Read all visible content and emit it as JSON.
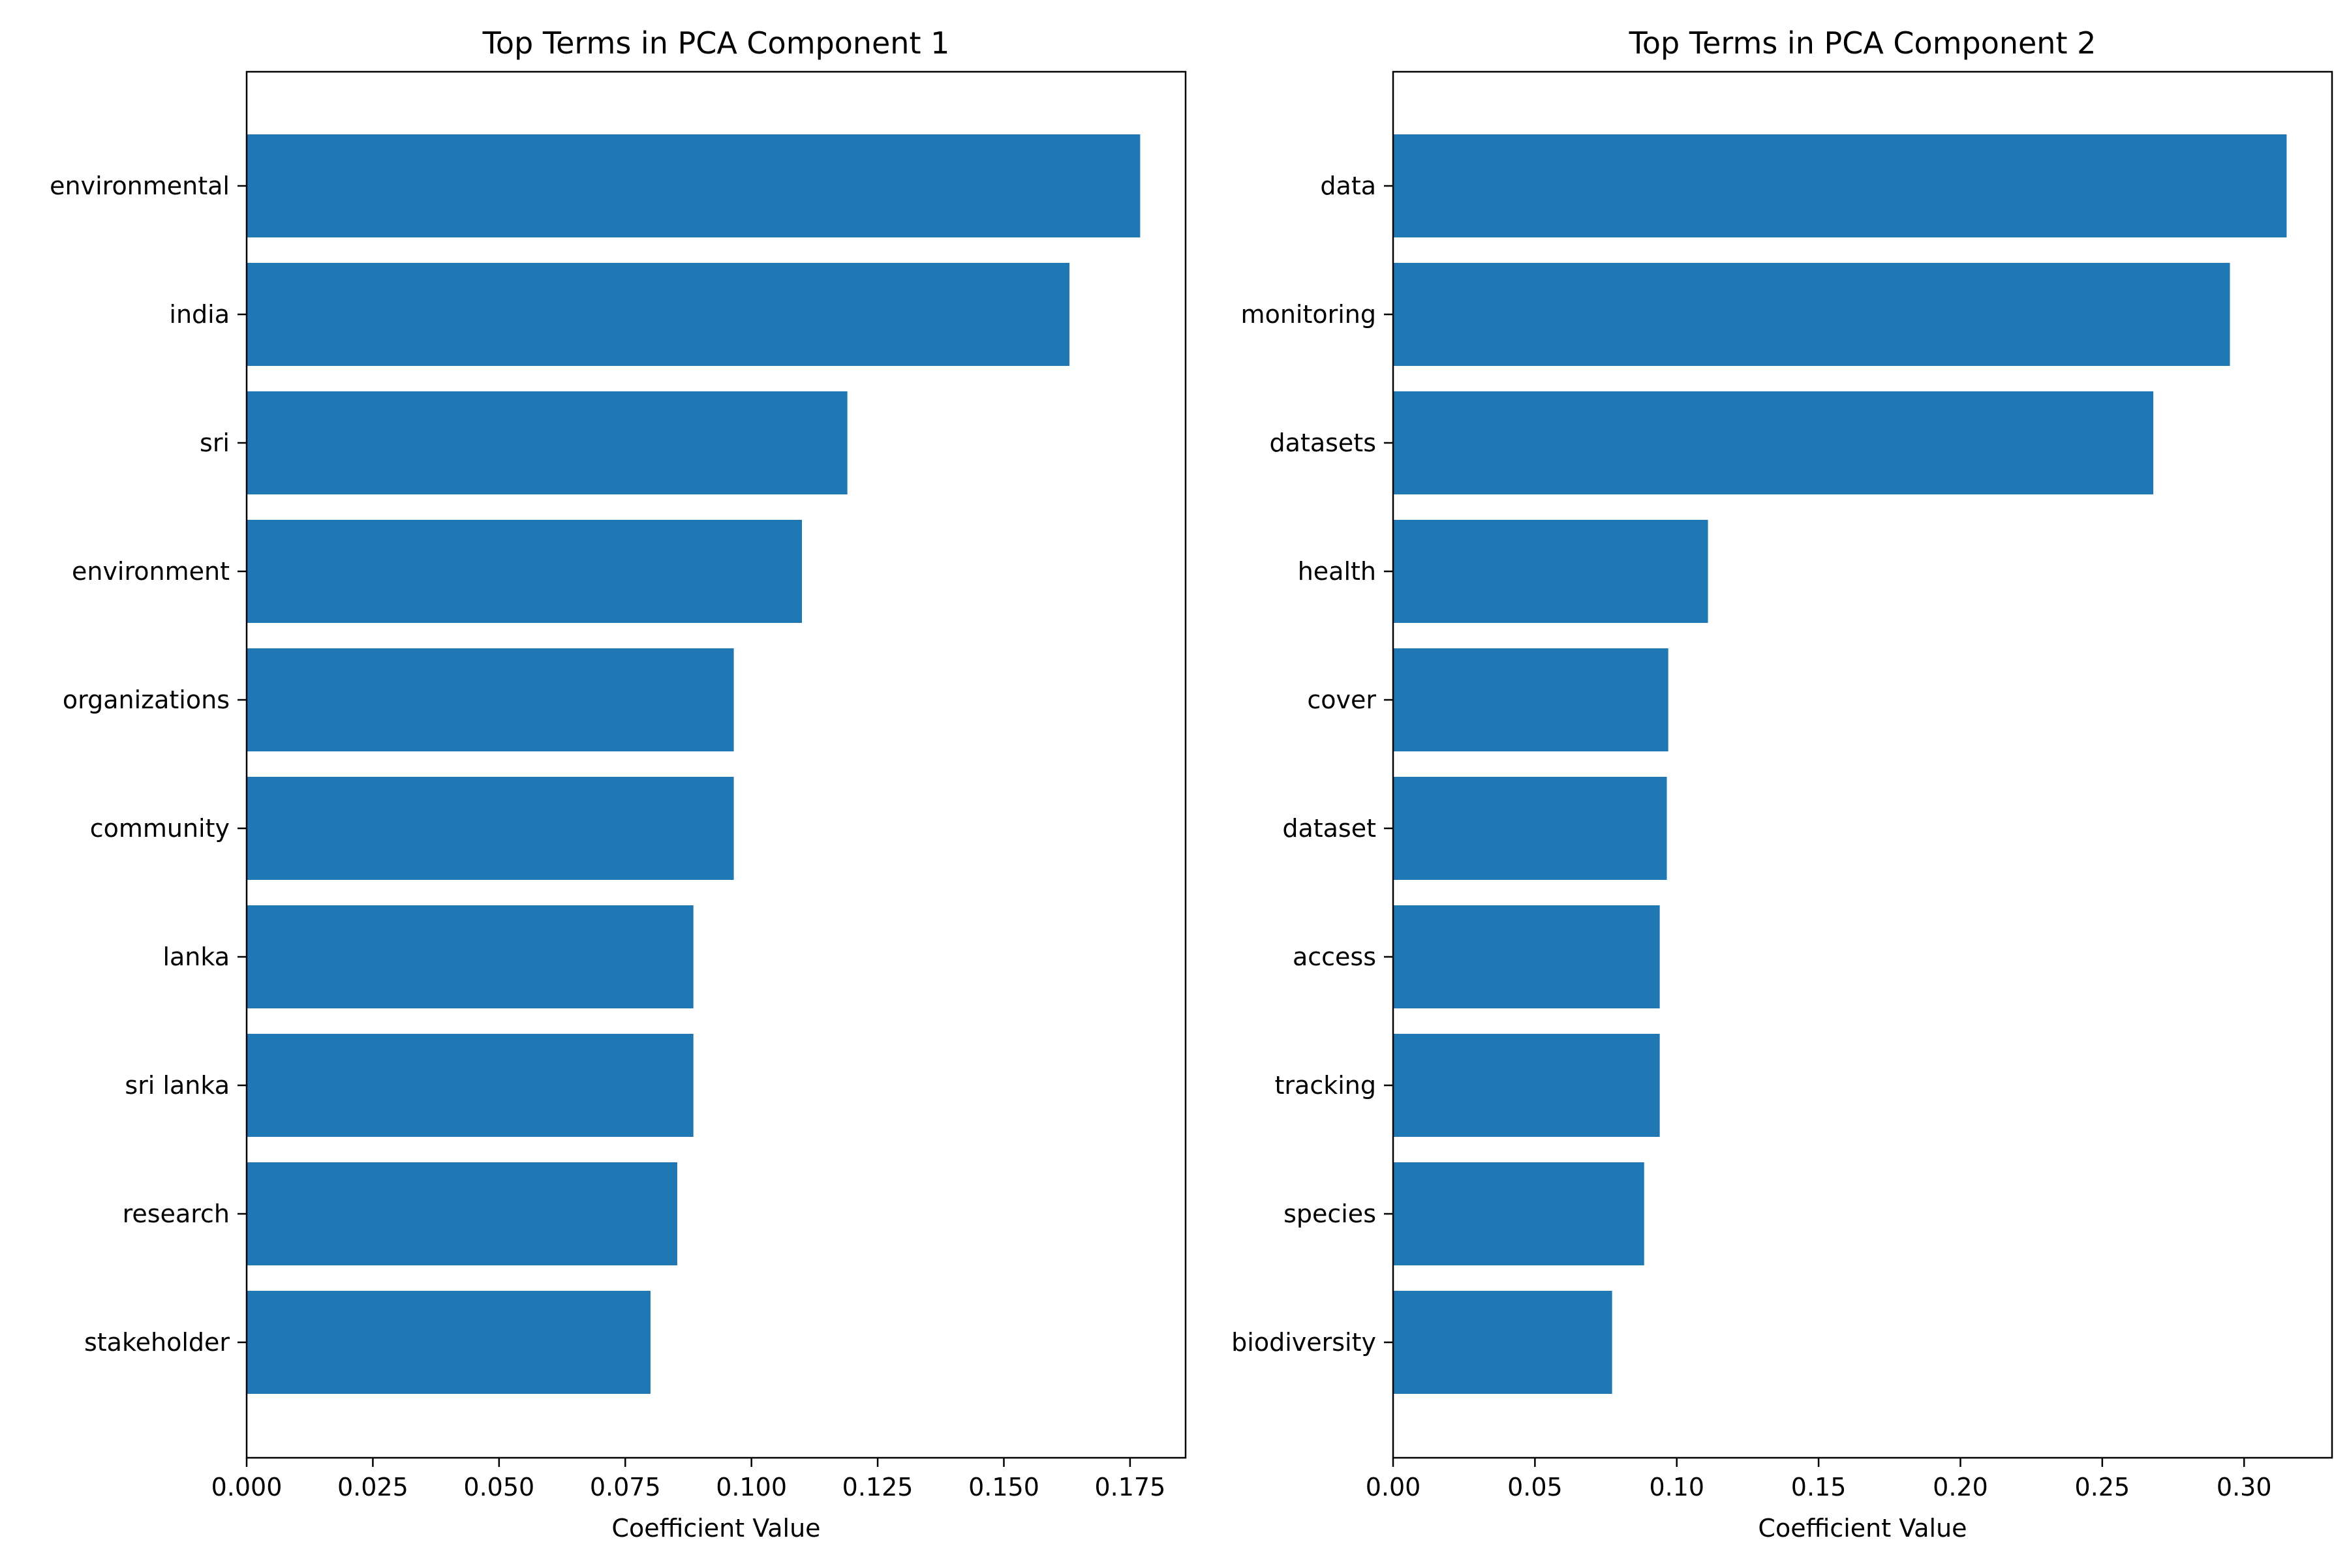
{
  "chart_data": [
    {
      "type": "bar",
      "orientation": "horizontal",
      "title": "Top Terms in PCA Component 1",
      "xlabel": "Coefficient Value",
      "ylabel": "",
      "categories": [
        "environmental",
        "india",
        "sri",
        "environment",
        "organizations",
        "community",
        "lanka",
        "sri lanka",
        "research",
        "stakeholder"
      ],
      "values": [
        0.177,
        0.163,
        0.119,
        0.11,
        0.0965,
        0.0965,
        0.0885,
        0.0885,
        0.0853,
        0.08
      ],
      "xlim": [
        0,
        0.186
      ],
      "xticks": [
        "0.000",
        "0.025",
        "0.050",
        "0.075",
        "0.100",
        "0.125",
        "0.150",
        "0.175"
      ],
      "bar_color": "#1f77b4",
      "grid": false,
      "legend": "none"
    },
    {
      "type": "bar",
      "orientation": "horizontal",
      "title": "Top Terms in PCA Component 2",
      "xlabel": "Coefficient Value",
      "ylabel": "",
      "categories": [
        "data",
        "monitoring",
        "datasets",
        "health",
        "cover",
        "dataset",
        "access",
        "tracking",
        "species",
        "biodiversity"
      ],
      "values": [
        0.315,
        0.295,
        0.268,
        0.111,
        0.097,
        0.0965,
        0.094,
        0.094,
        0.0885,
        0.0772
      ],
      "xlim": [
        0,
        0.331
      ],
      "xticks": [
        "0.00",
        "0.05",
        "0.10",
        "0.15",
        "0.20",
        "0.25",
        "0.30"
      ],
      "bar_color": "#1f77b4",
      "grid": false,
      "legend": "none"
    }
  ]
}
